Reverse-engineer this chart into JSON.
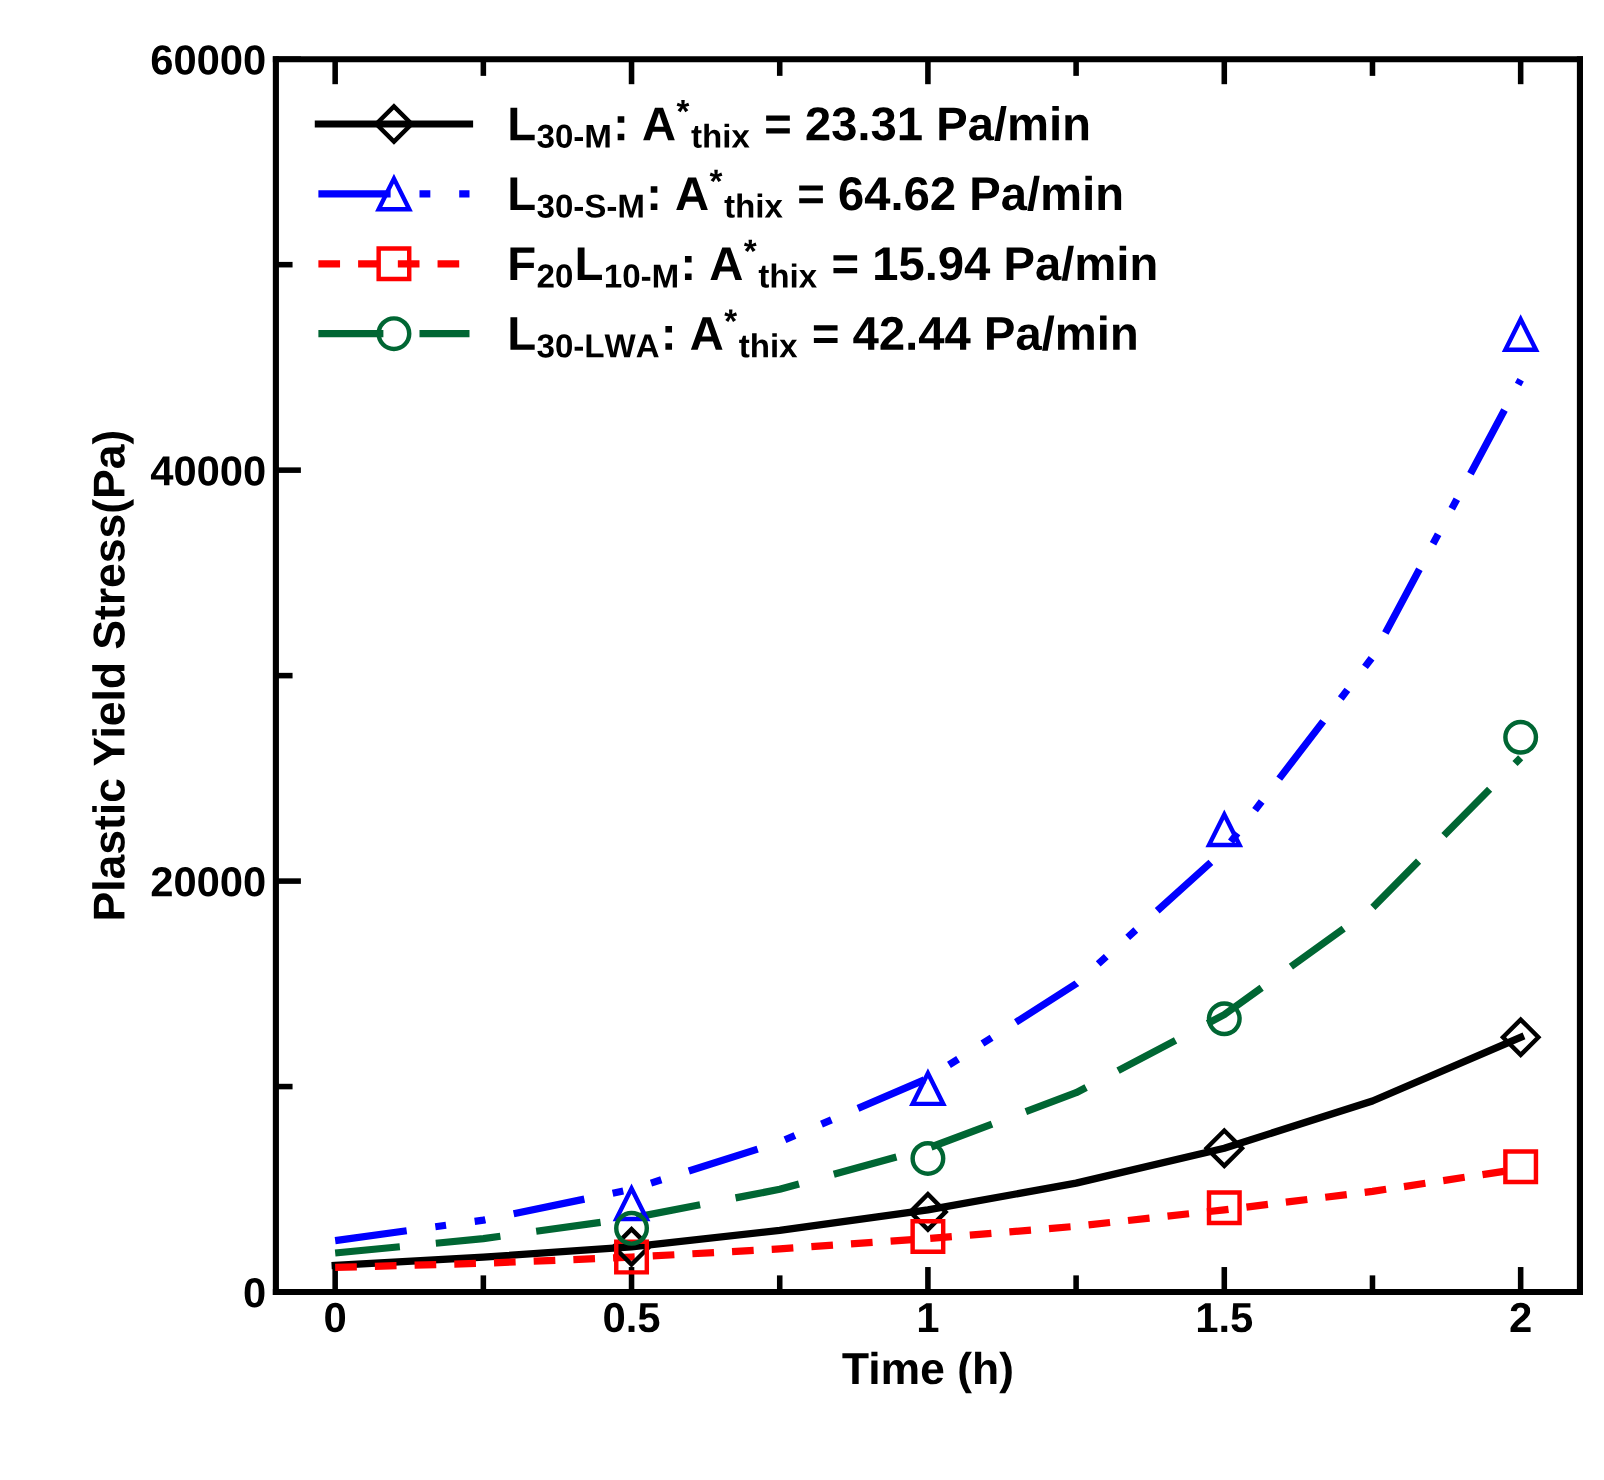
{
  "chart_data": {
    "type": "scatter",
    "xlabel": "Time (h)",
    "ylabel": "Plastic Yield Stress(Pa)",
    "xlim": [
      -0.1,
      2.1
    ],
    "ylim": [
      0,
      60000
    ],
    "xticks": [
      0,
      0.5,
      1,
      1.5,
      2
    ],
    "yticks": [
      0,
      20000,
      40000,
      60000
    ],
    "legend": "top left",
    "grid": false,
    "series": [
      {
        "name": "L$_{30-M}$: A$^{*}$$_{thix}$ = 23.31 Pa/min",
        "color": "#000000",
        "marker": "diamond",
        "x": [
          0.5,
          1,
          1.5,
          2
        ],
        "values": [
          2200,
          3900,
          7000,
          12400
        ]
      },
      {
        "name": "L$_{30-S-M}$: A$^{*}$$_{thix}$ = 64.62 Pa/min",
        "color": "#0000ff",
        "marker": "triangle",
        "x": [
          0.5,
          1,
          1.5,
          2
        ],
        "values": [
          4300,
          9900,
          22500,
          46600
        ]
      },
      {
        "name": "F$_{20}$L$_{10-M}$: A$^{*}$$_{thix}$ = 15.94 Pa/min",
        "color": "#ff0000",
        "marker": "square",
        "x": [
          0.5,
          1,
          1.5,
          2
        ],
        "values": [
          1700,
          2700,
          4100,
          6100
        ]
      },
      {
        "name": "L$_{30-LWA}$: A$^{*}$$_{thix}$ = 42.44 Pa/min",
        "color": "#006633",
        "marker": "circle",
        "x": [
          0.5,
          1,
          1.5,
          2
        ],
        "values": [
          3100,
          6500,
          13300,
          27000
        ]
      },
      {
        "color": "#000000",
        "type": "line",
        "line_style": "solid",
        "x": [
          0,
          0.25,
          0.5,
          0.75,
          1,
          1.25,
          1.5,
          1.75,
          2
        ],
        "values": [
          1300,
          1700,
          2200,
          3000,
          4000,
          5300,
          7000,
          9300,
          12400
        ]
      },
      {
        "color": "#0000ff",
        "type": "line",
        "line_style": "dashdot",
        "x": [
          0,
          0.25,
          0.5,
          0.75,
          1,
          1.25,
          1.5,
          1.75,
          2
        ],
        "values": [
          2500,
          3500,
          5000,
          7300,
          10400,
          15000,
          21500,
          30900,
          44400
        ]
      },
      {
        "color": "#ff0000",
        "type": "line",
        "line_style": "dotted",
        "x": [
          0,
          0.25,
          0.5,
          0.75,
          1,
          1.25,
          1.5,
          1.75,
          2
        ],
        "values": [
          1200,
          1400,
          1700,
          2100,
          2600,
          3200,
          4000,
          4900,
          6000
        ]
      },
      {
        "color": "#006633",
        "type": "line",
        "line_style": "dashed",
        "x": [
          0,
          0.25,
          0.5,
          0.75,
          1,
          1.25,
          1.5,
          1.75,
          2
        ],
        "values": [
          1900,
          2600,
          3600,
          5000,
          7000,
          9700,
          13500,
          18700,
          26000
        ]
      }
    ]
  }
}
